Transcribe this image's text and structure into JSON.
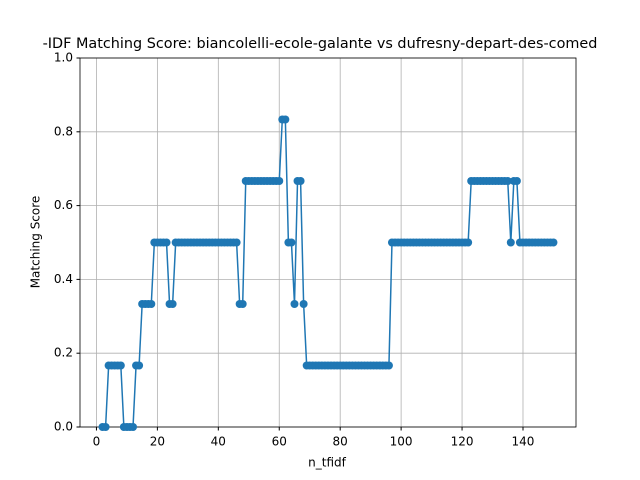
{
  "chart_data": {
    "type": "line",
    "title": "-IDF Matching Score: biancolelli-ecole-galante vs dufresny-depart-des-comed",
    "xlabel": "n_tfidf",
    "ylabel": "Matching Score",
    "x": [
      2,
      3,
      4,
      5,
      6,
      7,
      8,
      9,
      10,
      11,
      12,
      13,
      14,
      15,
      16,
      17,
      18,
      19,
      20,
      21,
      22,
      23,
      24,
      25,
      26,
      27,
      28,
      29,
      30,
      31,
      32,
      33,
      34,
      35,
      36,
      37,
      38,
      39,
      40,
      41,
      42,
      43,
      44,
      45,
      46,
      47,
      48,
      49,
      50,
      51,
      52,
      53,
      54,
      55,
      56,
      57,
      58,
      59,
      60,
      61,
      62,
      63,
      64,
      65,
      66,
      67,
      68,
      69,
      70,
      71,
      72,
      73,
      74,
      75,
      76,
      77,
      78,
      79,
      80,
      81,
      82,
      83,
      84,
      85,
      86,
      87,
      88,
      89,
      90,
      91,
      92,
      93,
      94,
      95,
      96,
      97,
      98,
      99,
      100,
      101,
      102,
      103,
      104,
      105,
      106,
      107,
      108,
      109,
      110,
      111,
      112,
      113,
      114,
      115,
      116,
      117,
      118,
      119,
      120,
      121,
      122,
      123,
      124,
      125,
      126,
      127,
      128,
      129,
      130,
      131,
      132,
      133,
      134,
      135,
      136,
      137,
      138,
      139,
      140,
      141,
      142,
      143,
      144,
      145,
      146,
      147,
      148,
      149,
      150
    ],
    "series": [
      {
        "color": "#1f77b4",
        "values": [
          0,
          0,
          0.1667,
          0.1667,
          0.1667,
          0.1667,
          0.1667,
          0,
          0,
          0,
          0,
          0.1667,
          0.1667,
          0.3333,
          0.3333,
          0.3333,
          0.3333,
          0.5,
          0.5,
          0.5,
          0.5,
          0.5,
          0.3333,
          0.3333,
          0.5,
          0.5,
          0.5,
          0.5,
          0.5,
          0.5,
          0.5,
          0.5,
          0.5,
          0.5,
          0.5,
          0.5,
          0.5,
          0.5,
          0.5,
          0.5,
          0.5,
          0.5,
          0.5,
          0.5,
          0.5,
          0.3333,
          0.3333,
          0.6667,
          0.6667,
          0.6667,
          0.6667,
          0.6667,
          0.6667,
          0.6667,
          0.6667,
          0.6667,
          0.6667,
          0.6667,
          0.6667,
          0.8333,
          0.8333,
          0.5,
          0.5,
          0.3333,
          0.6667,
          0.6667,
          0.3333,
          0.1667,
          0.1667,
          0.1667,
          0.1667,
          0.1667,
          0.1667,
          0.1667,
          0.1667,
          0.1667,
          0.1667,
          0.1667,
          0.1667,
          0.1667,
          0.1667,
          0.1667,
          0.1667,
          0.1667,
          0.1667,
          0.1667,
          0.1667,
          0.1667,
          0.1667,
          0.1667,
          0.1667,
          0.1667,
          0.1667,
          0.1667,
          0.1667,
          0.5,
          0.5,
          0.5,
          0.5,
          0.5,
          0.5,
          0.5,
          0.5,
          0.5,
          0.5,
          0.5,
          0.5,
          0.5,
          0.5,
          0.5,
          0.5,
          0.5,
          0.5,
          0.5,
          0.5,
          0.5,
          0.5,
          0.5,
          0.5,
          0.5,
          0.5,
          0.6667,
          0.6667,
          0.6667,
          0.6667,
          0.6667,
          0.6667,
          0.6667,
          0.6667,
          0.6667,
          0.6667,
          0.6667,
          0.6667,
          0.6667,
          0.5,
          0.6667,
          0.6667,
          0.5,
          0.5,
          0.5,
          0.5,
          0.5,
          0.5,
          0.5,
          0.5,
          0.5,
          0.5,
          0.5,
          0.5
        ]
      }
    ],
    "xlim": [
      -5.4,
      157.4
    ],
    "xticks": [
      0,
      20,
      40,
      60,
      80,
      100,
      120,
      140
    ],
    "ylim": [
      0,
      1
    ],
    "yticks": [
      {
        "value": 0,
        "label": "0.0"
      },
      0.2,
      0.4,
      0.6,
      0.8,
      {
        "value": 1,
        "label": "1.0"
      }
    ],
    "grid": true,
    "marker": true
  }
}
